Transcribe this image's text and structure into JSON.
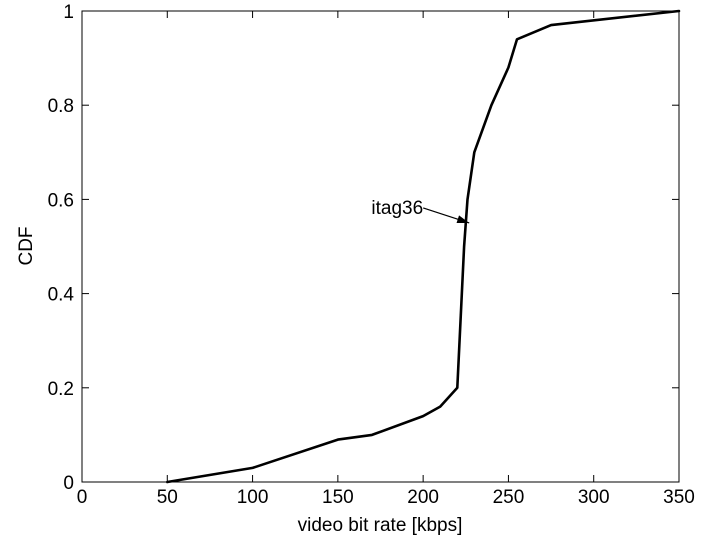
{
  "chart_data": {
    "type": "line",
    "title": "",
    "xlabel": "video bit rate [kbps]",
    "ylabel": "CDF",
    "xlim": [
      0,
      350
    ],
    "ylim": [
      0,
      1
    ],
    "x_ticks": [
      0,
      50,
      100,
      150,
      200,
      250,
      300,
      350
    ],
    "y_ticks": [
      0,
      0.2,
      0.4,
      0.6,
      0.8,
      1
    ],
    "y_tick_labels": [
      "0",
      "0.2",
      "0.4",
      "0.6",
      "0.8",
      "1"
    ],
    "grid": false,
    "legend": "none",
    "series": [
      {
        "color": "#000000",
        "x": [
          50,
          100,
          150,
          170,
          200,
          210,
          220,
          224,
          226,
          230,
          240,
          250,
          255,
          275,
          350
        ],
        "y": [
          0,
          0.03,
          0.09,
          0.1,
          0.14,
          0.16,
          0.2,
          0.5,
          0.6,
          0.7,
          0.8,
          0.88,
          0.94,
          0.97,
          1.0
        ]
      }
    ],
    "annotations": [
      {
        "text": "itag36",
        "x": 227,
        "y": 0.55
      }
    ]
  }
}
